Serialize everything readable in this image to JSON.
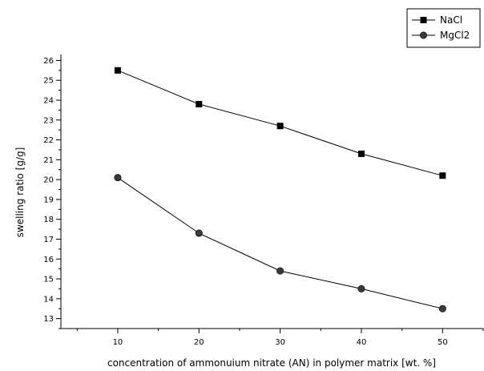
{
  "chart_data": {
    "type": "line",
    "title": "",
    "xlabel": "concentration of ammonuium nitrate (AN) in polymer matrix [wt. %]",
    "ylabel": "swelling ratio [g/g]",
    "x": [
      10,
      20,
      30,
      40,
      50
    ],
    "xticks": [
      "10",
      "20",
      "30",
      "40",
      "50"
    ],
    "yticks": [
      "13",
      "14",
      "15",
      "16",
      "17",
      "18",
      "19",
      "20",
      "21",
      "22",
      "23",
      "24",
      "25",
      "26"
    ],
    "xlim": [
      3,
      55
    ],
    "ylim": [
      12.5,
      26.3
    ],
    "grid": false,
    "legend_position": "top-right",
    "series": [
      {
        "name": "NaCl",
        "marker": "square",
        "color": "#000000",
        "values": [
          25.5,
          23.8,
          22.7,
          21.3,
          20.2
        ]
      },
      {
        "name": "MgCl2",
        "marker": "circle",
        "color": "#000000",
        "values": [
          20.1,
          17.3,
          15.4,
          14.5,
          13.5
        ]
      }
    ]
  }
}
